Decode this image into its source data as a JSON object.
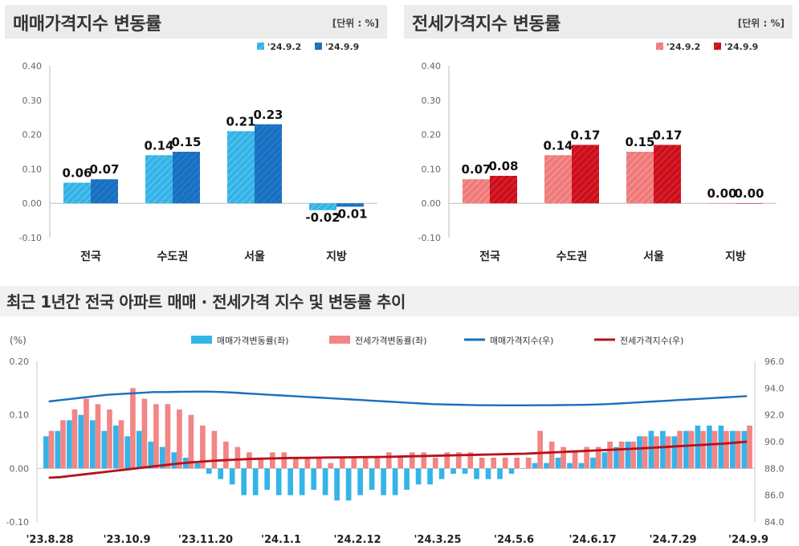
{
  "panels": [
    {
      "title": "매매가격지수 변동률",
      "unit": "[단위 : %]",
      "legend": [
        "'24.9.2",
        "'24.9.9"
      ],
      "colors": {
        "a": "#33b3e6",
        "b": "#1a6fc0",
        "a_hatch": "#6fcaf0",
        "b_hatch": "#2a86d4"
      }
    },
    {
      "title": "전세가격지수 변동률",
      "unit": "[단위 : %]",
      "legend": [
        "'24.9.2",
        "'24.9.9"
      ],
      "colors": {
        "a": "#f07a7a",
        "b": "#cc0f1c",
        "a_hatch": "#f6a3a3",
        "b_hatch": "#e0343f"
      }
    }
  ],
  "bottom": {
    "title": "최근 1년간 전국 아파트 매매 · 전세가격 지수 및 변동률 추이",
    "left_unit": "(%)",
    "legend": [
      "매매가격변동률(좌)",
      "전세가격변동률(좌)",
      "매매가격지수(우)",
      "전세가격지수(우)"
    ],
    "colors": {
      "sale_bar": "#35b4e8",
      "jeonse_bar": "#f28585",
      "sale_line": "#1a6fc0",
      "jeonse_line": "#b5121b"
    }
  },
  "chart_data": [
    {
      "type": "bar",
      "categories": [
        "전국",
        "수도권",
        "서울",
        "지방"
      ],
      "series": [
        {
          "name": "'24.9.2",
          "values": [
            0.06,
            0.14,
            0.21,
            -0.02
          ]
        },
        {
          "name": "'24.9.9",
          "values": [
            0.07,
            0.15,
            0.23,
            -0.01
          ]
        }
      ],
      "data_labels": [
        [
          "0.06",
          "0.14",
          "0.21",
          "-0.02"
        ],
        [
          "0.07",
          "0.15",
          "0.23",
          "-0.01"
        ]
      ],
      "y_ticks": [
        "0.40",
        "0.30",
        "0.20",
        "0.10",
        "0.00",
        "-0.10"
      ],
      "ylim": [
        -0.1,
        0.4
      ]
    },
    {
      "type": "bar",
      "categories": [
        "전국",
        "수도권",
        "서울",
        "지방"
      ],
      "series": [
        {
          "name": "'24.9.2",
          "values": [
            0.07,
            0.14,
            0.15,
            0.0
          ]
        },
        {
          "name": "'24.9.9",
          "values": [
            0.08,
            0.17,
            0.17,
            0.0
          ]
        }
      ],
      "data_labels": [
        [
          "0.07",
          "0.14",
          "0.15",
          "0.00"
        ],
        [
          "0.08",
          "0.17",
          "0.17",
          "0.00"
        ]
      ],
      "y_ticks": [
        "0.40",
        "0.30",
        "0.20",
        "0.10",
        "0.00",
        "-0.10"
      ],
      "ylim": [
        -0.1,
        0.4
      ]
    },
    {
      "type": "bar",
      "x_ticks": [
        "'23.8.28",
        "'23.10.9",
        "'23.11.20",
        "'24.1.1",
        "'24.2.12",
        "'24.3.25",
        "'24.5.6",
        "'24.6.17",
        "'24.7.29",
        "'24.9.9"
      ],
      "y_ticks_left": [
        "0.20",
        "0.10",
        "0.00",
        "-0.10"
      ],
      "y_ticks_right": [
        "96.0",
        "94.0",
        "92.0",
        "90.0",
        "88.0",
        "86.0",
        "84.0"
      ],
      "ylim_left": [
        -0.1,
        0.2
      ],
      "ylim_right": [
        84.0,
        96.0
      ],
      "series": [
        {
          "name": "매매가격변동률(좌)",
          "axis": "left",
          "kind": "bar",
          "values": [
            0.06,
            0.07,
            0.09,
            0.1,
            0.09,
            0.07,
            0.08,
            0.06,
            0.07,
            0.05,
            0.04,
            0.03,
            0.02,
            0.01,
            -0.01,
            -0.02,
            -0.03,
            -0.05,
            -0.05,
            -0.04,
            -0.05,
            -0.05,
            -0.05,
            -0.04,
            -0.05,
            -0.06,
            -0.06,
            -0.05,
            -0.04,
            -0.05,
            -0.05,
            -0.04,
            -0.03,
            -0.03,
            -0.02,
            -0.01,
            -0.01,
            -0.02,
            -0.02,
            -0.02,
            -0.01,
            0.0,
            0.01,
            0.01,
            0.02,
            0.01,
            0.01,
            0.02,
            0.03,
            0.04,
            0.05,
            0.06,
            0.07,
            0.07,
            0.06,
            0.07,
            0.08,
            0.08,
            0.08,
            0.07,
            0.07
          ]
        },
        {
          "name": "전세가격변동률(좌)",
          "axis": "left",
          "kind": "bar",
          "values": [
            0.07,
            0.09,
            0.11,
            0.13,
            0.12,
            0.11,
            0.09,
            0.15,
            0.13,
            0.12,
            0.12,
            0.11,
            0.1,
            0.08,
            0.07,
            0.05,
            0.04,
            0.03,
            0.02,
            0.03,
            0.03,
            0.02,
            0.02,
            0.02,
            0.01,
            0.02,
            0.02,
            0.02,
            0.02,
            0.03,
            0.02,
            0.03,
            0.03,
            0.02,
            0.03,
            0.03,
            0.03,
            0.02,
            0.02,
            0.02,
            0.02,
            0.02,
            0.07,
            0.05,
            0.04,
            0.03,
            0.04,
            0.04,
            0.05,
            0.05,
            0.05,
            0.06,
            0.06,
            0.06,
            0.07,
            0.07,
            0.07,
            0.07,
            0.07,
            0.07,
            0.08
          ]
        },
        {
          "name": "매매가격지수(우)",
          "axis": "right",
          "kind": "line",
          "values": [
            93.0,
            93.1,
            93.2,
            93.3,
            93.4,
            93.5,
            93.55,
            93.6,
            93.65,
            93.7,
            93.7,
            93.72,
            93.73,
            93.74,
            93.73,
            93.7,
            93.66,
            93.6,
            93.55,
            93.5,
            93.45,
            93.4,
            93.35,
            93.3,
            93.25,
            93.2,
            93.15,
            93.1,
            93.05,
            93.0,
            92.95,
            92.9,
            92.85,
            92.8,
            92.78,
            92.76,
            92.74,
            92.72,
            92.72,
            92.71,
            92.71,
            92.71,
            92.72,
            92.72,
            92.73,
            92.74,
            92.75,
            92.77,
            92.8,
            92.85,
            92.9,
            92.95,
            93.0,
            93.05,
            93.1,
            93.15,
            93.2,
            93.25,
            93.3,
            93.35,
            93.4
          ]
        },
        {
          "name": "전세가격지수(우)",
          "axis": "right",
          "kind": "line",
          "values": [
            87.3,
            87.35,
            87.45,
            87.55,
            87.65,
            87.75,
            87.85,
            87.95,
            88.05,
            88.15,
            88.25,
            88.35,
            88.43,
            88.5,
            88.56,
            88.61,
            88.65,
            88.69,
            88.72,
            88.74,
            88.76,
            88.78,
            88.79,
            88.8,
            88.81,
            88.82,
            88.83,
            88.84,
            88.85,
            88.86,
            88.88,
            88.9,
            88.92,
            88.94,
            88.96,
            88.98,
            89.0,
            89.02,
            89.04,
            89.06,
            89.08,
            89.1,
            89.14,
            89.18,
            89.22,
            89.26,
            89.3,
            89.34,
            89.38,
            89.42,
            89.46,
            89.5,
            89.55,
            89.6,
            89.65,
            89.7,
            89.75,
            89.8,
            89.85,
            89.92,
            90.0
          ]
        }
      ]
    }
  ]
}
